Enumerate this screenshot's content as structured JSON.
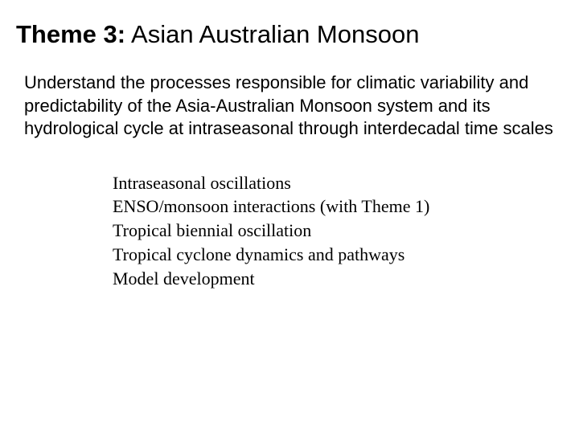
{
  "heading": {
    "label": "Theme 3:",
    "title": " Asian Australian Monsoon"
  },
  "description": "Understand the processes responsible for climatic variability and predictability of the Asia-Australian Monsoon system and its hydrological cycle at intraseasonal through interdecadal time scales",
  "subtopics": [
    "Intraseasonal oscillations",
    "ENSO/monsoon interactions (with Theme 1)",
    "Tropical biennial oscillation",
    "Tropical cyclone dynamics and pathways",
    "Model development"
  ]
}
